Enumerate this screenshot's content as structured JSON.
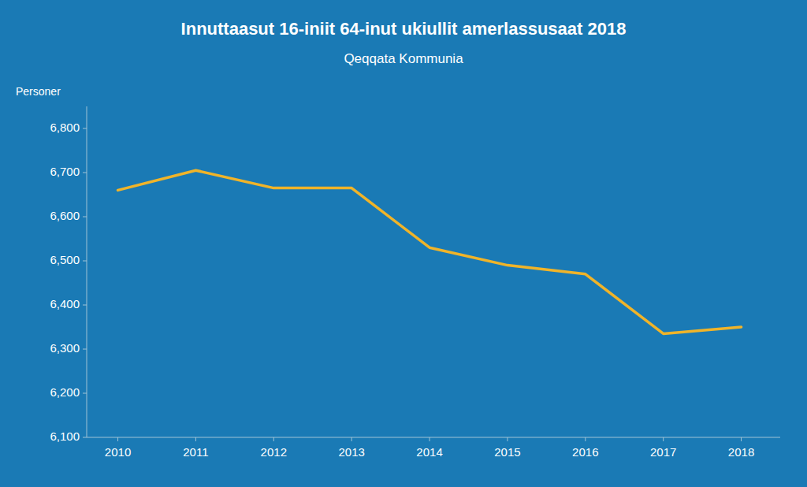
{
  "chart_data": {
    "type": "line",
    "title": "Innuttaasut 16-iniit 64-inut ukiullit amerlassusaat 2018",
    "subtitle": "Qeqqata Kommunia",
    "y_label": "Personer",
    "x": [
      2010,
      2011,
      2012,
      2013,
      2014,
      2015,
      2016,
      2017,
      2018
    ],
    "values": [
      6660,
      6705,
      6665,
      6665,
      6530,
      6490,
      6470,
      6335,
      6350
    ],
    "color": "#f0b429",
    "xlim": [
      2009.6,
      2018.5
    ],
    "xticks": [
      2010,
      2011,
      2012,
      2013,
      2014,
      2015,
      2016,
      2017,
      2018
    ],
    "ylim": [
      6100,
      6850
    ],
    "yticks": [
      {
        "value": 6100,
        "label": "6,100"
      },
      {
        "value": 6200,
        "label": "6,200"
      },
      {
        "value": 6300,
        "label": "6,300"
      },
      {
        "value": 6400,
        "label": "6,400"
      },
      {
        "value": 6500,
        "label": "6,500"
      },
      {
        "value": 6600,
        "label": "6,600"
      },
      {
        "value": 6700,
        "label": "6,700"
      },
      {
        "value": 6800,
        "label": "6,800"
      }
    ],
    "grid": false
  }
}
